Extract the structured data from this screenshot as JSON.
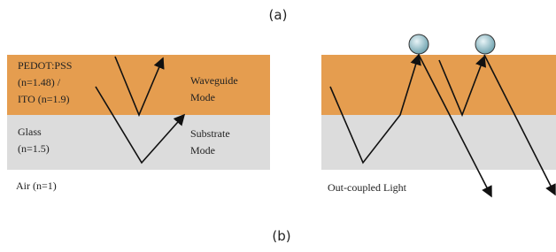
{
  "header": {
    "title": "(a)"
  },
  "left_panel": {
    "layer1": [
      "PEDOT:PSS",
      "(n=1.48) /",
      "ITO (n=1.9)"
    ],
    "mode1": [
      "Waveguide",
      "Mode"
    ],
    "layer2": [
      "Glass",
      "(n=1.5)"
    ],
    "mode2": [
      "Substrate",
      "Mode"
    ],
    "air": "Air (n=1)"
  },
  "right_panel": {
    "label": "Out-coupled Light"
  },
  "footer": {
    "title": "(b)"
  }
}
